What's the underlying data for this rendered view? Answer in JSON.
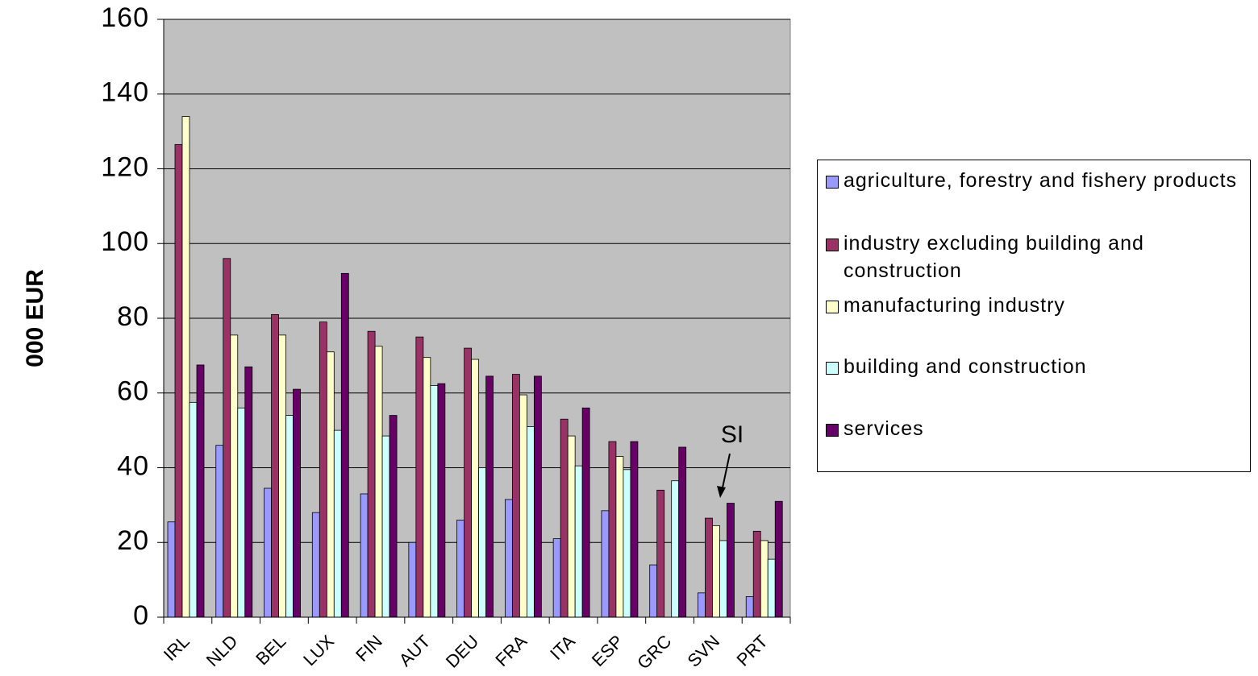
{
  "chart_data": {
    "type": "bar",
    "y_label": "000 EUR",
    "categories": [
      "IRL",
      "NLD",
      "BEL",
      "LUX",
      "FIN",
      "AUT",
      "DEU",
      "FRA",
      "ITA",
      "ESP",
      "GRC",
      "SVN",
      "PRT"
    ],
    "series": [
      {
        "name": "agriculture, forestry and fishery products",
        "color": "#9999ff",
        "values": [
          25.5,
          46,
          34.5,
          28,
          33,
          20,
          26,
          31.5,
          21,
          28.5,
          14,
          6.5,
          5.5
        ]
      },
      {
        "name": "industry excluding building and construction",
        "color": "#993366",
        "values": [
          126.5,
          96,
          81,
          79,
          76.5,
          75,
          72,
          65,
          53,
          47,
          34,
          26.5,
          23
        ]
      },
      {
        "name": "manufacturing industry",
        "color": "#ffffcc",
        "values": [
          134,
          75.5,
          75.5,
          71,
          72.5,
          69.5,
          69,
          59.5,
          48.5,
          43,
          null,
          24.5,
          20.5
        ]
      },
      {
        "name": "building and construction",
        "color": "#ccffff",
        "values": [
          57.5,
          56,
          54,
          50,
          48.5,
          62,
          40,
          51,
          40.5,
          39.5,
          36.5,
          20.5,
          15.5
        ]
      },
      {
        "name": "services",
        "color": "#660066",
        "values": [
          67.5,
          67,
          61,
          92,
          54,
          62.5,
          64.5,
          64.5,
          56,
          47,
          45.5,
          30.5,
          31
        ]
      }
    ],
    "annotations": [
      {
        "text": "SI"
      }
    ],
    "ylim": [
      0,
      160
    ],
    "yticks": [
      0,
      20,
      40,
      60,
      80,
      100,
      120,
      140,
      160
    ],
    "grid": true
  }
}
